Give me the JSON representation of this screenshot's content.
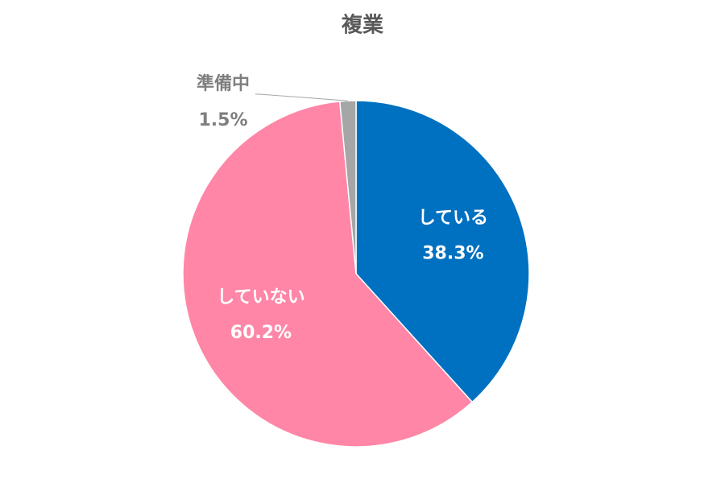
{
  "chart_data": {
    "type": "pie",
    "title": "複業",
    "categories": [
      "している",
      "していない",
      "準備中"
    ],
    "values": [
      38.3,
      60.2,
      1.5
    ],
    "value_labels": [
      "38.3%",
      "60.2%",
      "1.5%"
    ],
    "colors": [
      "#0070c0",
      "#ff86a6",
      "#a6a6a6"
    ]
  }
}
